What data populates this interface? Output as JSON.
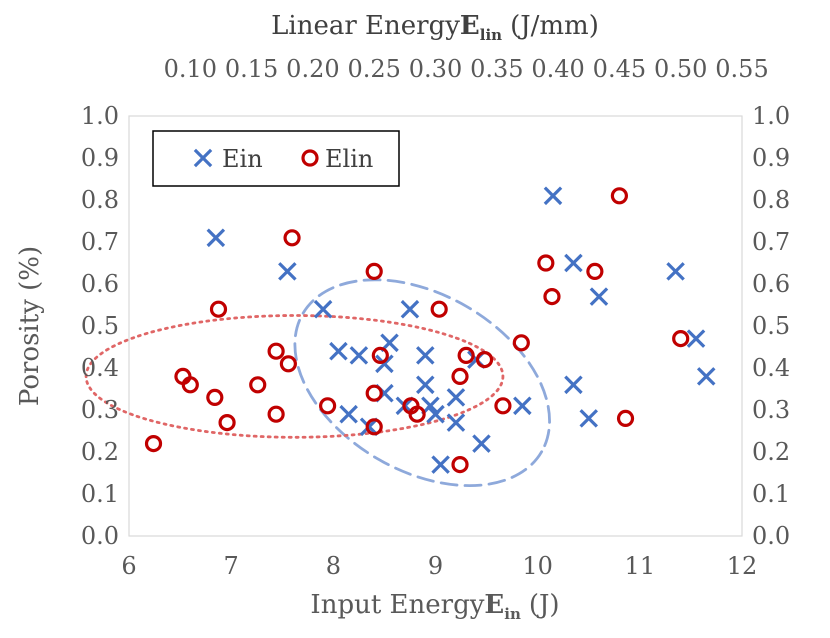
{
  "chart_data": {
    "type": "scatter",
    "xlabel": "Input Energy",
    "xlabel_symbol": "E",
    "xlabel_sub": "in",
    "xlabel_unit": "(J)",
    "x2label": "Linear Energy",
    "x2label_symbol": "E",
    "x2label_sub": "lin",
    "x2label_unit": "(J/mm)",
    "ylabel": "Porosity (%)",
    "xlim": [
      6,
      12
    ],
    "x2lim": [
      0.05,
      0.55
    ],
    "ylim": [
      0.0,
      1.0
    ],
    "x_ticks": [
      "6",
      "7",
      "8",
      "9",
      "10",
      "11",
      "12"
    ],
    "x2_ticks": [
      "0.10",
      "0.15",
      "0.20",
      "0.25",
      "0.30",
      "0.35",
      "0.40",
      "0.45",
      "0.50",
      "0.55"
    ],
    "y_ticks": [
      "0.0",
      "0.1",
      "0.2",
      "0.3",
      "0.4",
      "0.5",
      "0.6",
      "0.7",
      "0.8",
      "0.9",
      "1.0"
    ],
    "grid": false,
    "legend_position": "top-left",
    "series": [
      {
        "name": "Ein",
        "marker": "x",
        "color": "#4472C4",
        "axis": "bottom",
        "points": [
          [
            6.85,
            0.71
          ],
          [
            7.55,
            0.63
          ],
          [
            7.9,
            0.54
          ],
          [
            8.75,
            0.54
          ],
          [
            8.05,
            0.44
          ],
          [
            8.25,
            0.43
          ],
          [
            8.55,
            0.46
          ],
          [
            8.5,
            0.41
          ],
          [
            8.5,
            0.34
          ],
          [
            8.9,
            0.43
          ],
          [
            8.9,
            0.36
          ],
          [
            8.7,
            0.31
          ],
          [
            8.15,
            0.29
          ],
          [
            8.35,
            0.26
          ],
          [
            8.95,
            0.31
          ],
          [
            9.0,
            0.29
          ],
          [
            9.2,
            0.33
          ],
          [
            9.2,
            0.27
          ],
          [
            9.4,
            0.42
          ],
          [
            9.45,
            0.22
          ],
          [
            9.05,
            0.17
          ],
          [
            9.85,
            0.31
          ],
          [
            10.15,
            0.81
          ],
          [
            10.35,
            0.65
          ],
          [
            10.6,
            0.57
          ],
          [
            10.35,
            0.36
          ],
          [
            10.5,
            0.28
          ],
          [
            11.35,
            0.63
          ],
          [
            11.55,
            0.47
          ],
          [
            11.65,
            0.38
          ]
        ]
      },
      {
        "name": "Elin",
        "marker": "o",
        "color": "#C00000",
        "axis": "top",
        "points": [
          [
            0.183,
            0.71
          ],
          [
            0.123,
            0.54
          ],
          [
            0.25,
            0.63
          ],
          [
            0.303,
            0.54
          ],
          [
            0.094,
            0.38
          ],
          [
            0.1,
            0.36
          ],
          [
            0.07,
            0.22
          ],
          [
            0.12,
            0.33
          ],
          [
            0.13,
            0.27
          ],
          [
            0.17,
            0.44
          ],
          [
            0.17,
            0.29
          ],
          [
            0.155,
            0.36
          ],
          [
            0.18,
            0.41
          ],
          [
            0.212,
            0.31
          ],
          [
            0.255,
            0.43
          ],
          [
            0.25,
            0.34
          ],
          [
            0.25,
            0.26
          ],
          [
            0.28,
            0.31
          ],
          [
            0.285,
            0.29
          ],
          [
            0.325,
            0.43
          ],
          [
            0.34,
            0.42
          ],
          [
            0.32,
            0.38
          ],
          [
            0.355,
            0.31
          ],
          [
            0.37,
            0.46
          ],
          [
            0.32,
            0.17
          ],
          [
            0.39,
            0.65
          ],
          [
            0.395,
            0.57
          ],
          [
            0.45,
            0.81
          ],
          [
            0.43,
            0.63
          ],
          [
            0.5,
            0.47
          ],
          [
            0.455,
            0.28
          ]
        ]
      }
    ],
    "annotations": [
      {
        "shape": "ellipse",
        "series": "Ein",
        "style": "dashed",
        "color": "#8EA9DB",
        "center": [
          8.87,
          0.365
        ],
        "semi_axes": [
          1.35,
          0.21
        ],
        "rotation_deg": 30
      },
      {
        "shape": "ellipse",
        "series": "Elin",
        "style": "dotted",
        "color": "#E06666",
        "center": [
          0.185,
          0.38
        ],
        "semi_axes": [
          0.17,
          0.145
        ],
        "rotation_deg": 0
      }
    ]
  }
}
